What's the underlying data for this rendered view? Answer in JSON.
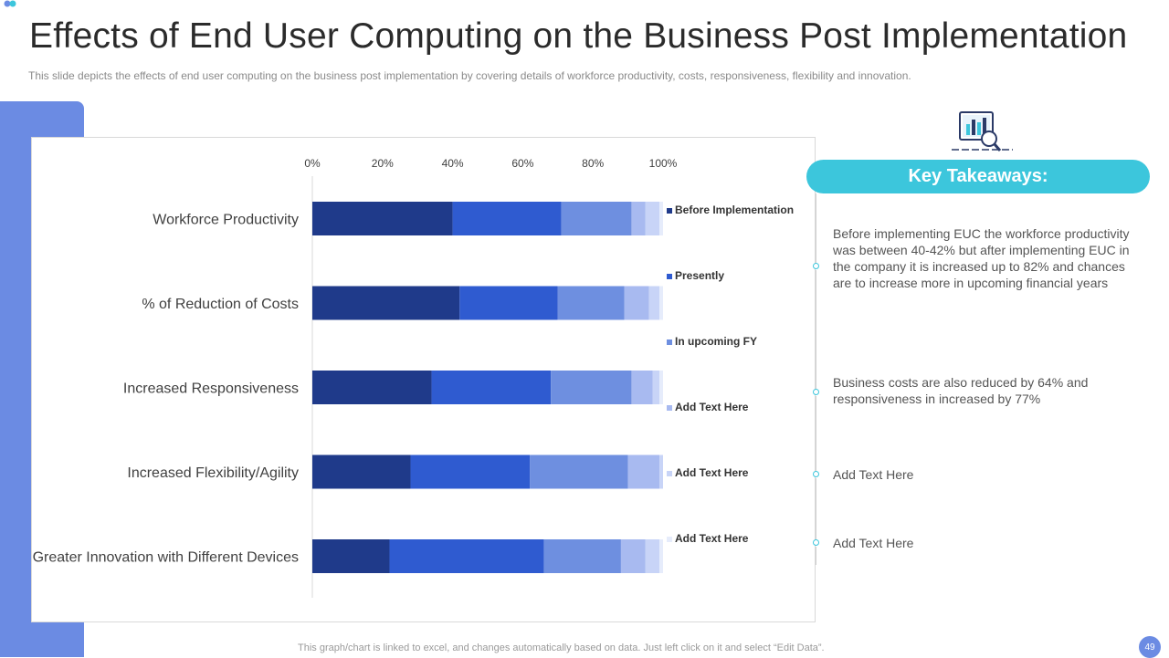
{
  "header": {
    "title": "Effects of End User Computing on the Business Post Implementation",
    "subtitle": "This slide depicts the effects of end user computing on the business post implementation by covering  details of workforce productivity, costs, responsiveness, flexibility and innovation."
  },
  "colors": {
    "accent_blue": "#6b8be3",
    "accent_cyan": "#3cc6dc"
  },
  "chart_data": {
    "type": "bar",
    "orientation": "horizontal",
    "stacked": "percent",
    "categories": [
      "Workforce Productivity",
      "% of Reduction of Costs",
      "Increased Responsiveness",
      "Increased Flexibility/Agility",
      "Greater Innovation with Different Devices"
    ],
    "series": [
      {
        "name": "Before Implementation",
        "color": "#1f3a8a",
        "values": [
          40,
          42,
          34,
          28,
          22
        ]
      },
      {
        "name": "Presently",
        "color": "#2f5bd0",
        "values": [
          31,
          28,
          34,
          34,
          44
        ]
      },
      {
        "name": "In upcoming FY",
        "color": "#6e8fe0",
        "values": [
          20,
          19,
          23,
          28,
          22
        ]
      },
      {
        "name": "Add Text Here",
        "color": "#a8baf0",
        "values": [
          4,
          7,
          6,
          9,
          7
        ]
      },
      {
        "name": "Add Text Here",
        "color": "#c8d4f7",
        "values": [
          4,
          3,
          2,
          1,
          4
        ]
      },
      {
        "name": "Add Text Here",
        "color": "#e6ecfb",
        "values": [
          1,
          1,
          1,
          0,
          1
        ]
      }
    ],
    "x_ticks": [
      "0%",
      "20%",
      "40%",
      "60%",
      "80%",
      "100%"
    ],
    "xlim": [
      0,
      100
    ],
    "legend": "right"
  },
  "takeaways": {
    "heading": "Key Takeaways:",
    "items": [
      "Before implementing EUC the workforce productivity was between 40-42% but after implementing EUC in the company it is increased up to 82% and chances are to increase more in upcoming financial years",
      "Business costs are also reduced by 64% and responsiveness in increased by 77%",
      "Add Text Here",
      "Add Text Here"
    ]
  },
  "footer": {
    "note": "This graph/chart is linked to excel,  and changes automatically based on data. Just left click on it and select “Edit Data”.",
    "page_number": "49"
  }
}
